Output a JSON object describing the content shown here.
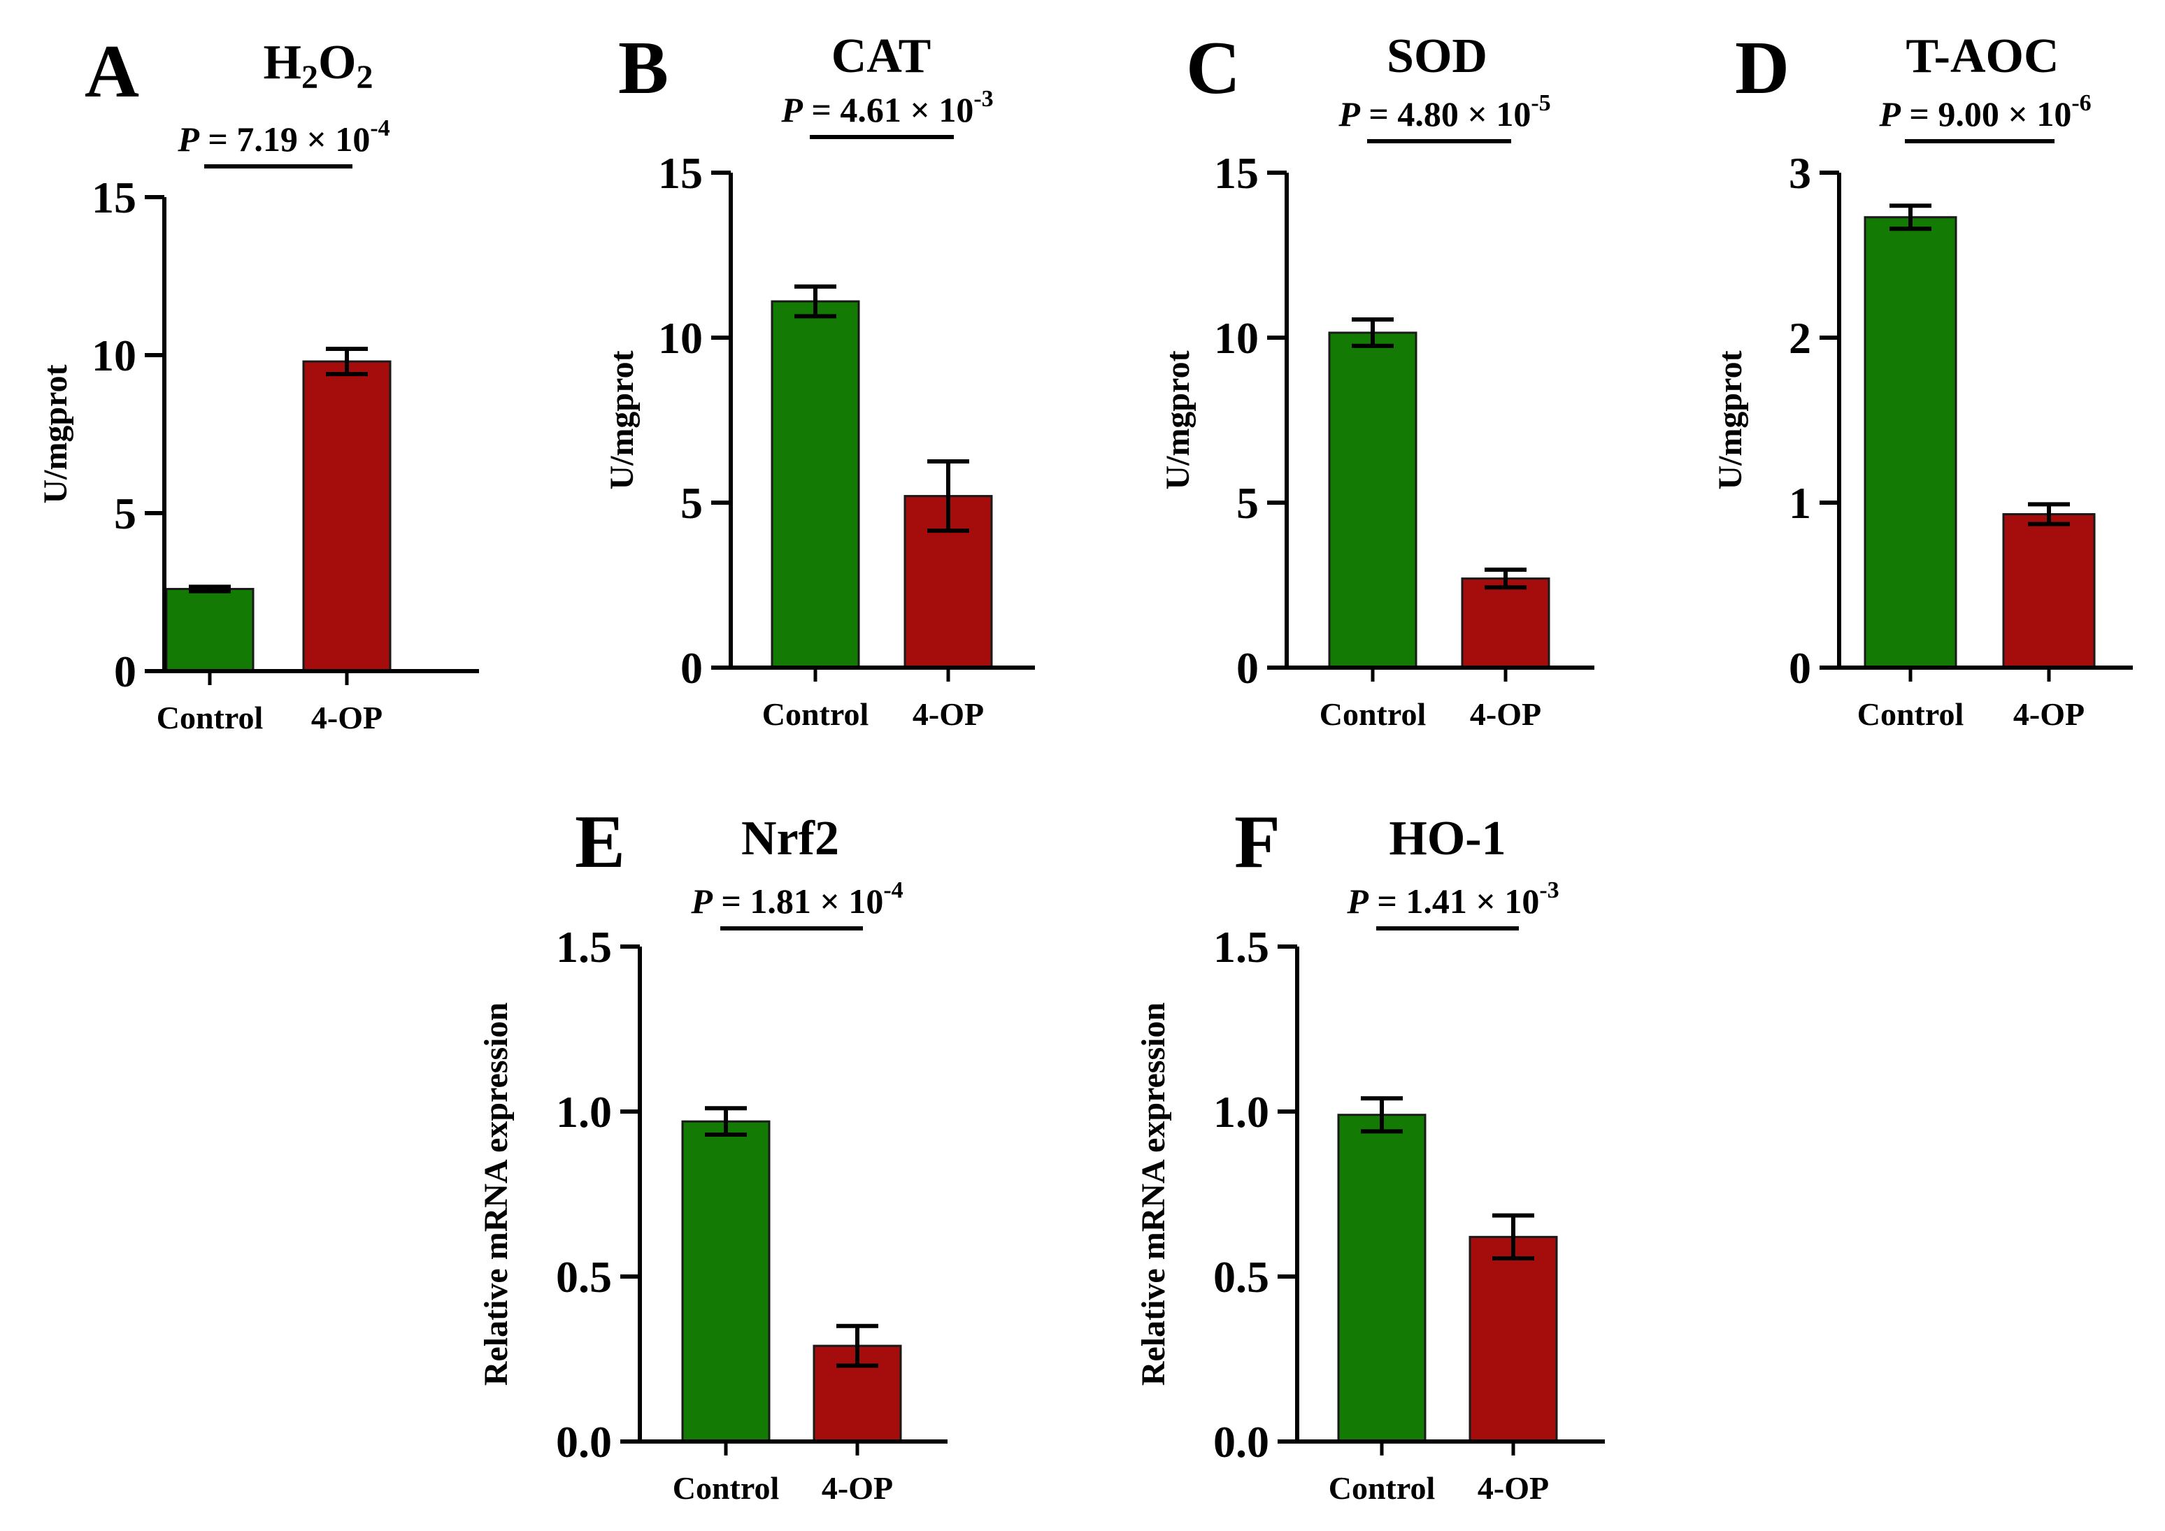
{
  "colors": {
    "control": "#137b04",
    "treatment": "#a50c0c",
    "axis": "#000000",
    "background": "#ffffff"
  },
  "chart_data": [
    {
      "panel": "A",
      "type": "bar",
      "title_parts": [
        "H",
        "2",
        "O",
        "2"
      ],
      "ylabel": "U/mgprot",
      "categories": [
        "Control",
        "4-OP"
      ],
      "values": [
        2.6,
        9.8
      ],
      "errors": [
        0.07,
        0.4
      ],
      "ylim": [
        0,
        15
      ],
      "yticks": [
        "0",
        "5",
        "10",
        "15"
      ],
      "p_text": {
        "p": "P",
        "eq": " = 7.19 × 10",
        "exp": "-4"
      }
    },
    {
      "panel": "B",
      "type": "bar",
      "title": "CAT",
      "ylabel": "U/mgprot",
      "categories": [
        "Control",
        "4-OP"
      ],
      "values": [
        11.1,
        5.2
      ],
      "errors": [
        0.45,
        1.05
      ],
      "ylim": [
        0,
        15
      ],
      "yticks": [
        "0",
        "5",
        "10",
        "15"
      ],
      "p_text": {
        "p": "P",
        "eq": " = 4.61 × 10",
        "exp": "-3"
      }
    },
    {
      "panel": "C",
      "type": "bar",
      "title": "SOD",
      "ylabel": "U/mgprot",
      "categories": [
        "Control",
        "4-OP"
      ],
      "values": [
        10.15,
        2.7
      ],
      "errors": [
        0.4,
        0.27
      ],
      "ylim": [
        0,
        15
      ],
      "yticks": [
        "0",
        "5",
        "10",
        "15"
      ],
      "p_text": {
        "p": "P",
        "eq": " = 4.80 × 10",
        "exp": "-5"
      }
    },
    {
      "panel": "D",
      "type": "bar",
      "title": "T-AOC",
      "ylabel": "U/mgprot",
      "categories": [
        "Control",
        "4-OP"
      ],
      "values": [
        2.73,
        0.93
      ],
      "errors": [
        0.07,
        0.06
      ],
      "ylim": [
        0,
        3
      ],
      "yticks": [
        "0",
        "1",
        "2",
        "3"
      ],
      "p_text": {
        "p": "P",
        "eq": " = 9.00 × 10",
        "exp": "-6"
      }
    },
    {
      "panel": "E",
      "type": "bar",
      "title": "Nrf2",
      "ylabel": "Relative mRNA expression",
      "categories": [
        "Control",
        "4-OP"
      ],
      "values": [
        0.97,
        0.29
      ],
      "errors": [
        0.04,
        0.06
      ],
      "ylim": [
        0,
        1.5
      ],
      "yticks": [
        "0.0",
        "0.5",
        "1.0",
        "1.5"
      ],
      "p_text": {
        "p": "P",
        "eq": " = 1.81 × 10",
        "exp": "-4"
      }
    },
    {
      "panel": "F",
      "type": "bar",
      "title": "HO-1",
      "ylabel": "Relative mRNA expression",
      "categories": [
        "Control",
        "4-OP"
      ],
      "values": [
        0.99,
        0.62
      ],
      "errors": [
        0.05,
        0.065
      ],
      "ylim": [
        0,
        1.5
      ],
      "yticks": [
        "0.0",
        "0.5",
        "1.0",
        "1.5"
      ],
      "p_text": {
        "p": "P",
        "eq": " = 1.41 × 10",
        "exp": "-3"
      }
    }
  ]
}
